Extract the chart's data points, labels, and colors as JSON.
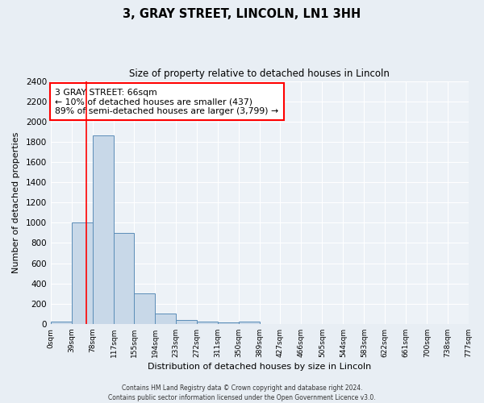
{
  "title": "3, GRAY STREET, LINCOLN, LN1 3HH",
  "subtitle": "Size of property relative to detached houses in Lincoln",
  "xlabel": "Distribution of detached houses by size in Lincoln",
  "ylabel": "Number of detached properties",
  "property_size": 66,
  "annotation_line1": "3 GRAY STREET: 66sqm",
  "annotation_line2": "← 10% of detached houses are smaller (437)",
  "annotation_line3": "89% of semi-detached houses are larger (3,799) →",
  "bin_edges": [
    0,
    39,
    78,
    117,
    155,
    194,
    233,
    272,
    311,
    350,
    389,
    427,
    466,
    505,
    544,
    583,
    622,
    661,
    700,
    738,
    777
  ],
  "bin_counts": [
    20,
    1000,
    1860,
    900,
    300,
    100,
    40,
    20,
    15,
    20,
    0,
    0,
    0,
    0,
    0,
    0,
    0,
    0,
    0,
    0
  ],
  "bar_color": "#c8d8e8",
  "bar_edge_color": "#5b8db8",
  "red_line_x": 66,
  "ylim": [
    0,
    2400
  ],
  "yticks": [
    0,
    200,
    400,
    600,
    800,
    1000,
    1200,
    1400,
    1600,
    1800,
    2000,
    2200,
    2400
  ],
  "tick_labels": [
    "0sqm",
    "39sqm",
    "78sqm",
    "117sqm",
    "155sqm",
    "194sqm",
    "233sqm",
    "272sqm",
    "311sqm",
    "350sqm",
    "389sqm",
    "427sqm",
    "466sqm",
    "505sqm",
    "544sqm",
    "583sqm",
    "622sqm",
    "661sqm",
    "700sqm",
    "738sqm",
    "777sqm"
  ],
  "footer_line1": "Contains HM Land Registry data © Crown copyright and database right 2024.",
  "footer_line2": "Contains public sector information licensed under the Open Government Licence v3.0.",
  "bg_color": "#e8eef4",
  "plot_bg_color": "#edf2f7",
  "grid_color": "#ffffff"
}
